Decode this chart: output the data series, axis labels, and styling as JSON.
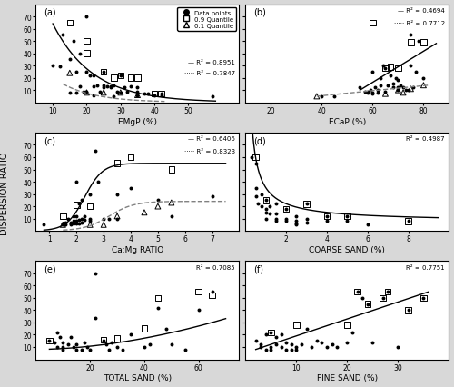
{
  "panels": [
    {
      "label": "(a)",
      "xlabel": "EMgP (%)",
      "r2_solid": "R² = 0.8951",
      "r2_dashed": "R² = 0.7847",
      "show_legend": true,
      "xlim": [
        5,
        65
      ],
      "ylim": [
        0,
        80
      ],
      "xticks": [
        10,
        20,
        30,
        40,
        50
      ],
      "yticks": [
        10,
        20,
        30,
        40,
        50,
        60,
        70
      ],
      "curve_solid": {
        "type": "decay",
        "a": 150,
        "b": -0.085,
        "xmin": 10,
        "xmax": 58
      },
      "curve_dashed": {
        "type": "decay",
        "a": 55,
        "b": -0.1,
        "xmin": 13,
        "xmax": 43
      },
      "scatter_data": [
        [
          10,
          30
        ],
        [
          12,
          29
        ],
        [
          13,
          55
        ],
        [
          15,
          35
        ],
        [
          15,
          8
        ],
        [
          16,
          50
        ],
        [
          17,
          25
        ],
        [
          17,
          8
        ],
        [
          18,
          40
        ],
        [
          18,
          13
        ],
        [
          19,
          9
        ],
        [
          20,
          70
        ],
        [
          20,
          25
        ],
        [
          20,
          9
        ],
        [
          21,
          22
        ],
        [
          22,
          22
        ],
        [
          22,
          13
        ],
        [
          22,
          6
        ],
        [
          23,
          14
        ],
        [
          24,
          9
        ],
        [
          25,
          25
        ],
        [
          25,
          14
        ],
        [
          25,
          12
        ],
        [
          26,
          13
        ],
        [
          27,
          13
        ],
        [
          27,
          12
        ],
        [
          28,
          14
        ],
        [
          28,
          5
        ],
        [
          29,
          9
        ],
        [
          30,
          22
        ],
        [
          30,
          8
        ],
        [
          31,
          12
        ],
        [
          32,
          9
        ],
        [
          33,
          13
        ],
        [
          35,
          12
        ],
        [
          35,
          9
        ],
        [
          35,
          6
        ],
        [
          37,
          7
        ],
        [
          38,
          7
        ],
        [
          40,
          6
        ],
        [
          42,
          6
        ],
        [
          42,
          7
        ],
        [
          57,
          5
        ]
      ],
      "quantile09_data": [
        [
          15,
          65
        ],
        [
          20,
          50
        ],
        [
          20,
          40
        ],
        [
          25,
          25
        ],
        [
          28,
          20
        ],
        [
          30,
          22
        ],
        [
          33,
          20
        ],
        [
          35,
          20
        ],
        [
          40,
          7
        ],
        [
          42,
          7
        ]
      ],
      "quantile01_data": [
        [
          15,
          24
        ],
        [
          20,
          8
        ],
        [
          25,
          8
        ],
        [
          30,
          8
        ],
        [
          35,
          6
        ]
      ]
    },
    {
      "label": "(b)",
      "xlabel": "ECaP (%)",
      "r2_solid": "R² = 0.4694",
      "r2_dashed": "R² = 0.7712",
      "show_legend": false,
      "xlim": [
        10,
        90
      ],
      "ylim": [
        0,
        80
      ],
      "xticks": [
        20,
        40,
        60,
        80
      ],
      "yticks": [
        10,
        20,
        30,
        40,
        50,
        60,
        70
      ],
      "curve_solid": {
        "type": "linear",
        "x0": 55,
        "x1": 85,
        "y0": 10,
        "y1": 48
      },
      "curve_dashed": {
        "type": "linear_dashed",
        "x0": 38,
        "x1": 82,
        "y0": 5,
        "y1": 14
      },
      "scatter_data": [
        [
          40,
          5
        ],
        [
          45,
          5
        ],
        [
          55,
          12
        ],
        [
          57,
          9
        ],
        [
          58,
          9
        ],
        [
          58,
          8
        ],
        [
          59,
          10
        ],
        [
          60,
          7
        ],
        [
          60,
          8
        ],
        [
          60,
          25
        ],
        [
          61,
          12
        ],
        [
          62,
          8
        ],
        [
          62,
          10
        ],
        [
          63,
          14
        ],
        [
          63,
          20
        ],
        [
          64,
          30
        ],
        [
          65,
          9
        ],
        [
          65,
          28
        ],
        [
          66,
          14
        ],
        [
          67,
          22
        ],
        [
          68,
          12
        ],
        [
          68,
          15
        ],
        [
          69,
          20
        ],
        [
          70,
          12
        ],
        [
          70,
          18
        ],
        [
          70,
          10
        ],
        [
          71,
          14
        ],
        [
          72,
          12
        ],
        [
          73,
          10
        ],
        [
          74,
          10
        ],
        [
          75,
          55
        ],
        [
          75,
          30
        ],
        [
          76,
          12
        ],
        [
          77,
          25
        ],
        [
          78,
          50
        ],
        [
          80,
          20
        ]
      ],
      "quantile09_data": [
        [
          60,
          65
        ],
        [
          65,
          28
        ],
        [
          67,
          29
        ],
        [
          70,
          28
        ],
        [
          75,
          49
        ],
        [
          80,
          49
        ]
      ],
      "quantile01_data": [
        [
          38,
          5
        ],
        [
          65,
          7
        ],
        [
          70,
          10
        ],
        [
          72,
          8
        ],
        [
          75,
          11
        ],
        [
          80,
          14
        ]
      ]
    },
    {
      "label": "(c)",
      "xlabel": "Ca:Mg RATIO",
      "r2_solid": "R² = 0.6406",
      "r2_dashed": "R² = 0.8323",
      "show_legend": false,
      "xlim": [
        0.5,
        8
      ],
      "ylim": [
        0,
        80
      ],
      "xticks": [
        1,
        2,
        3,
        4,
        5,
        6,
        7
      ],
      "yticks": [
        10,
        20,
        30,
        40,
        50,
        60,
        70
      ],
      "curve_solid": {
        "type": "logistic",
        "L": 55,
        "k": 3.0,
        "x0": 2.3,
        "xmin": 0.8,
        "xmax": 7.5
      },
      "curve_dashed": {
        "type": "logistic",
        "L": 24,
        "k": 2.2,
        "x0": 3.2,
        "xmin": 1.5,
        "xmax": 7.5
      },
      "scatter_data": [
        [
          0.8,
          5
        ],
        [
          1.5,
          6
        ],
        [
          1.5,
          5
        ],
        [
          1.6,
          5
        ],
        [
          1.6,
          7
        ],
        [
          1.7,
          10
        ],
        [
          1.8,
          7
        ],
        [
          1.8,
          6
        ],
        [
          1.8,
          5
        ],
        [
          1.9,
          12
        ],
        [
          1.9,
          8
        ],
        [
          1.9,
          6
        ],
        [
          2.0,
          40
        ],
        [
          2.0,
          12
        ],
        [
          2.0,
          8
        ],
        [
          2.0,
          6
        ],
        [
          2.1,
          22
        ],
        [
          2.1,
          9
        ],
        [
          2.1,
          6
        ],
        [
          2.2,
          25
        ],
        [
          2.2,
          10
        ],
        [
          2.2,
          7
        ],
        [
          2.3,
          12
        ],
        [
          2.3,
          9
        ],
        [
          2.5,
          30
        ],
        [
          2.5,
          10
        ],
        [
          2.5,
          8
        ],
        [
          2.7,
          65
        ],
        [
          2.8,
          40
        ],
        [
          3.0,
          10
        ],
        [
          3.2,
          10
        ],
        [
          3.5,
          30
        ],
        [
          3.5,
          10
        ],
        [
          4.0,
          35
        ],
        [
          5.0,
          25
        ],
        [
          5.5,
          12
        ],
        [
          7.0,
          28
        ]
      ],
      "quantile09_data": [
        [
          1.5,
          12
        ],
        [
          2.0,
          21
        ],
        [
          2.5,
          20
        ],
        [
          3.5,
          55
        ],
        [
          4.0,
          60
        ],
        [
          5.5,
          50
        ]
      ],
      "quantile01_data": [
        [
          1.5,
          5
        ],
        [
          2.5,
          5
        ],
        [
          3.0,
          5
        ],
        [
          3.5,
          12
        ],
        [
          4.5,
          15
        ],
        [
          5.0,
          20
        ],
        [
          5.5,
          23
        ]
      ]
    },
    {
      "label": "(d)",
      "xlabel": "COARSE SAND (%)",
      "r2_solid": "R² = 0.4987",
      "r2_dashed": null,
      "show_legend": false,
      "xlim": [
        0,
        10
      ],
      "ylim": [
        0,
        80
      ],
      "xticks": [
        2,
        4,
        6,
        8
      ],
      "yticks": [
        10,
        20,
        30,
        40,
        50,
        60,
        70
      ],
      "curve_solid": {
        "type": "power_decay",
        "a": 28,
        "b": 0.9,
        "c": 7,
        "xmin": 0.3,
        "xmax": 9.5
      },
      "curve_dashed": null,
      "scatter_data": [
        [
          0.3,
          60
        ],
        [
          0.5,
          55
        ],
        [
          0.5,
          35
        ],
        [
          0.5,
          28
        ],
        [
          0.6,
          22
        ],
        [
          0.8,
          30
        ],
        [
          0.8,
          20
        ],
        [
          1.0,
          25
        ],
        [
          1.0,
          18
        ],
        [
          1.0,
          15
        ],
        [
          1.0,
          10
        ],
        [
          1.2,
          20
        ],
        [
          1.2,
          14
        ],
        [
          1.5,
          22
        ],
        [
          1.5,
          14
        ],
        [
          1.5,
          10
        ],
        [
          1.5,
          8
        ],
        [
          2.0,
          18
        ],
        [
          2.0,
          10
        ],
        [
          2.0,
          8
        ],
        [
          2.5,
          12
        ],
        [
          2.5,
          8
        ],
        [
          2.5,
          6
        ],
        [
          2.5,
          5
        ],
        [
          3.0,
          22
        ],
        [
          3.0,
          10
        ],
        [
          3.0,
          7
        ],
        [
          4.0,
          12
        ],
        [
          4.0,
          8
        ],
        [
          5.0,
          12
        ],
        [
          5.0,
          8
        ],
        [
          6.0,
          5
        ],
        [
          8.0,
          8
        ]
      ],
      "quantile09_data": [
        [
          0.5,
          60
        ],
        [
          1.0,
          25
        ],
        [
          2.0,
          18
        ],
        [
          3.0,
          22
        ],
        [
          4.0,
          12
        ],
        [
          5.0,
          12
        ],
        [
          8.0,
          8
        ]
      ],
      "quantile01_data": null
    },
    {
      "label": "(e)",
      "xlabel": "TOTAL SAND (%)",
      "r2_solid": "R² = 0.7085",
      "r2_dashed": null,
      "show_legend": false,
      "xlim": [
        0,
        75
      ],
      "ylim": [
        0,
        80
      ],
      "xticks": [
        20,
        40,
        60
      ],
      "yticks": [
        10,
        20,
        30,
        40,
        50,
        60,
        70
      ],
      "curve_solid": {
        "type": "power",
        "a": 0.012,
        "b": 1.8,
        "c": 8,
        "xmin": 5,
        "xmax": 70
      },
      "curve_dashed": null,
      "scatter_data": [
        [
          5,
          15
        ],
        [
          7,
          14
        ],
        [
          8,
          22
        ],
        [
          8,
          10
        ],
        [
          9,
          18
        ],
        [
          10,
          14
        ],
        [
          10,
          10
        ],
        [
          10,
          8
        ],
        [
          12,
          12
        ],
        [
          13,
          18
        ],
        [
          14,
          10
        ],
        [
          15,
          12
        ],
        [
          15,
          8
        ],
        [
          17,
          8
        ],
        [
          18,
          14
        ],
        [
          19,
          10
        ],
        [
          20,
          8
        ],
        [
          22,
          70
        ],
        [
          22,
          34
        ],
        [
          25,
          15
        ],
        [
          26,
          12
        ],
        [
          27,
          8
        ],
        [
          28,
          14
        ],
        [
          30,
          10
        ],
        [
          32,
          8
        ],
        [
          35,
          20
        ],
        [
          40,
          10
        ],
        [
          42,
          12
        ],
        [
          45,
          42
        ],
        [
          48,
          25
        ],
        [
          50,
          12
        ],
        [
          55,
          8
        ],
        [
          60,
          40
        ],
        [
          65,
          55
        ]
      ],
      "quantile09_data": [
        [
          5,
          15
        ],
        [
          25,
          16
        ],
        [
          30,
          17
        ],
        [
          40,
          25
        ],
        [
          45,
          50
        ],
        [
          60,
          55
        ],
        [
          65,
          52
        ]
      ],
      "quantile01_data": null
    },
    {
      "label": "(f)",
      "xlabel": "FINE SAND (%)",
      "r2_solid": "R² = 0.7751",
      "r2_dashed": null,
      "show_legend": false,
      "xlim": [
        0,
        40
      ],
      "ylim": [
        0,
        80
      ],
      "xticks": [
        10,
        20,
        30
      ],
      "yticks": [
        10,
        20,
        30,
        40,
        50,
        60,
        70
      ],
      "curve_solid": {
        "type": "linear",
        "x0": 2,
        "x1": 36,
        "y0": 8,
        "y1": 55
      },
      "curve_dashed": null,
      "scatter_data": [
        [
          2,
          15
        ],
        [
          3,
          12
        ],
        [
          3,
          10
        ],
        [
          4,
          20
        ],
        [
          4,
          8
        ],
        [
          5,
          22
        ],
        [
          5,
          10
        ],
        [
          5,
          8
        ],
        [
          6,
          18
        ],
        [
          6,
          12
        ],
        [
          7,
          20
        ],
        [
          7,
          10
        ],
        [
          8,
          14
        ],
        [
          8,
          8
        ],
        [
          9,
          12
        ],
        [
          9,
          8
        ],
        [
          10,
          10
        ],
        [
          10,
          8
        ],
        [
          11,
          12
        ],
        [
          12,
          25
        ],
        [
          13,
          10
        ],
        [
          14,
          15
        ],
        [
          15,
          14
        ],
        [
          16,
          10
        ],
        [
          17,
          12
        ],
        [
          18,
          10
        ],
        [
          20,
          14
        ],
        [
          21,
          22
        ],
        [
          22,
          55
        ],
        [
          23,
          50
        ],
        [
          24,
          45
        ],
        [
          25,
          14
        ],
        [
          27,
          50
        ],
        [
          28,
          55
        ],
        [
          30,
          10
        ],
        [
          32,
          40
        ],
        [
          35,
          50
        ]
      ],
      "quantile09_data": [
        [
          5,
          22
        ],
        [
          10,
          28
        ],
        [
          20,
          28
        ],
        [
          22,
          55
        ],
        [
          24,
          45
        ],
        [
          27,
          50
        ],
        [
          28,
          55
        ],
        [
          32,
          40
        ],
        [
          35,
          50
        ]
      ],
      "quantile01_data": null
    }
  ],
  "fig_bgcolor": "#d8d8d8",
  "panel_bgcolor": "white",
  "ylabel_shared": "DISPERSION RATIO"
}
